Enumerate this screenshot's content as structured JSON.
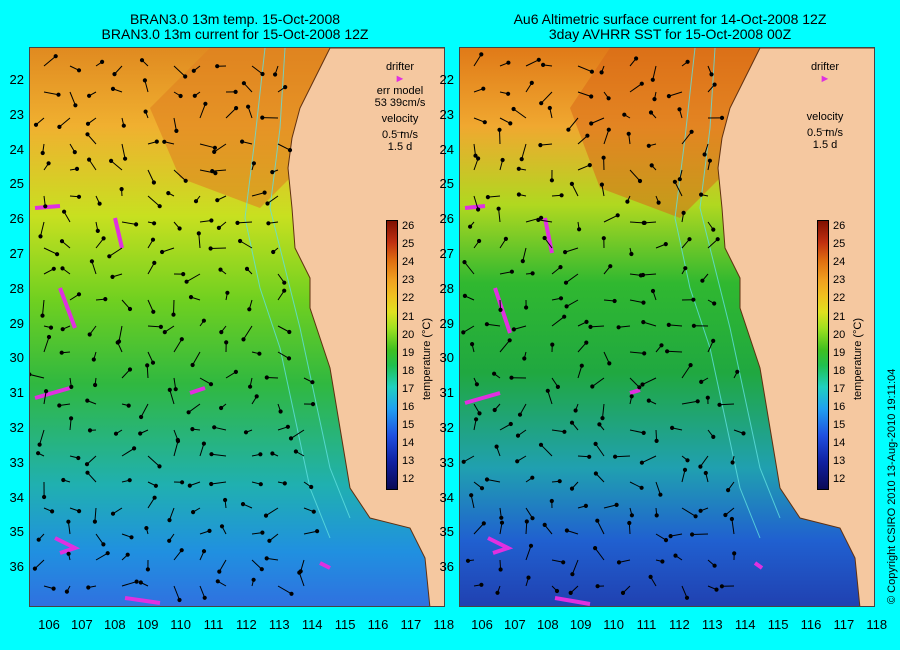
{
  "left_panel": {
    "title_line1": "BRAN3.0 13m temp. 15-Oct-2008",
    "title_line2": "BRAN3.0 13m current for 15-Oct-2008 12Z",
    "legend": {
      "drifter": "drifter",
      "err_model": "err model",
      "err_value": "53 39cm/s",
      "velocity": "velocity",
      "velocity_scale": "0.5 m/s",
      "duration": "1.5 d"
    }
  },
  "right_panel": {
    "title_line1": "Au6 Altimetric surface current for 14-Oct-2008 12Z",
    "title_line2": "3day AVHRR SST for 15-Oct-2008 00Z",
    "legend": {
      "drifter": "drifter",
      "velocity": "velocity",
      "velocity_scale": "0.5 m/s",
      "duration": "1.5 d"
    }
  },
  "axes": {
    "lat_labels": [
      "22",
      "23",
      "24",
      "25",
      "26",
      "27",
      "28",
      "29",
      "30",
      "31",
      "32",
      "33",
      "34",
      "35",
      "36"
    ],
    "lon_labels": [
      "106",
      "107",
      "108",
      "109",
      "110",
      "111",
      "112",
      "113",
      "114",
      "115",
      "116",
      "117",
      "118"
    ]
  },
  "colorbar": {
    "label": "temperature (°C)",
    "ticks": [
      "26",
      "25",
      "24",
      "23",
      "22",
      "21",
      "20",
      "19",
      "18",
      "17",
      "16",
      "15",
      "14",
      "13",
      "12"
    ]
  },
  "copyright": "© Copyright CSIRO 2010  13-Aug-2010 19:11:04",
  "colors": {
    "background": "#00ffff",
    "land": "#f5c8a0",
    "drifter": "#e030e0",
    "arrows": "#000000"
  }
}
